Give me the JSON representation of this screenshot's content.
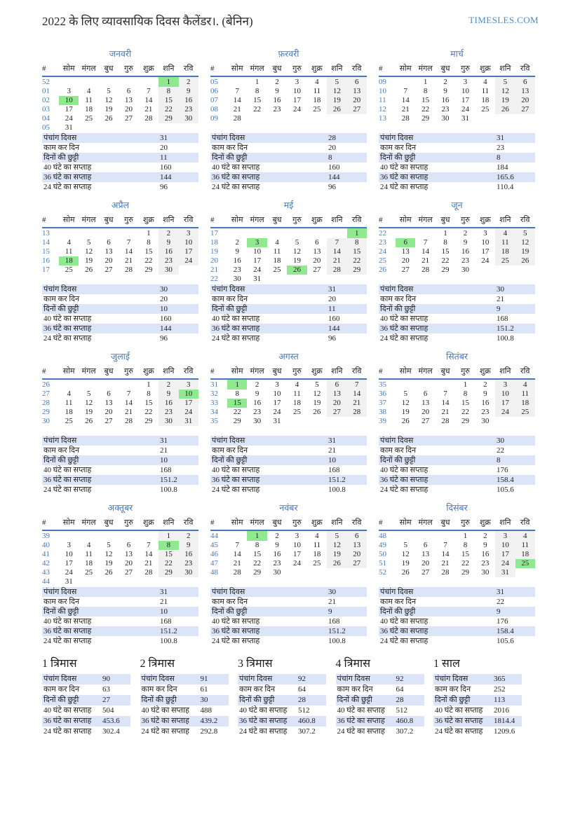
{
  "page": {
    "title": "2022 के लिए व्यावसायिक दिवस कैलेंडर।. (बेनिन)",
    "site": "TIMESLES.COM"
  },
  "colors": {
    "accent_blue": "#4678bc",
    "site_blue": "#4a8cc8",
    "holiday_green": "#90e890",
    "weekend_gray": "#f1f1f1",
    "stats_row_blue": "#dbe5f7"
  },
  "day_headers": [
    "#",
    "सोम",
    "मंगल",
    "बुध",
    "गुरु",
    "शुक्र",
    "शनि",
    "रवि"
  ],
  "stat_labels": [
    "पंचांग दिवस",
    "काम कर दिन",
    "दिनों की छुट्टी",
    "40 घंटे का सप्ताह",
    "36 घंटे का सप्ताह",
    "24 घंटे का सप्ताह"
  ],
  "months": [
    {
      "name": "जनवरी",
      "weeks": [
        {
          "n": "52",
          "d": [
            "",
            "",
            "",
            "",
            "",
            "1",
            "2"
          ]
        },
        {
          "n": "01",
          "d": [
            "3",
            "4",
            "5",
            "6",
            "7",
            "8",
            "9"
          ]
        },
        {
          "n": "02",
          "d": [
            "10",
            "11",
            "12",
            "13",
            "14",
            "15",
            "16"
          ]
        },
        {
          "n": "03",
          "d": [
            "17",
            "18",
            "19",
            "20",
            "21",
            "22",
            "23"
          ]
        },
        {
          "n": "04",
          "d": [
            "24",
            "25",
            "26",
            "27",
            "28",
            "29",
            "30"
          ]
        },
        {
          "n": "05",
          "d": [
            "31",
            "",
            "",
            "",
            "",
            "",
            ""
          ]
        }
      ],
      "holidays": [
        "1",
        "10"
      ],
      "stats": [
        "31",
        "20",
        "11",
        "160",
        "144",
        "96"
      ]
    },
    {
      "name": "फ़रवरी",
      "weeks": [
        {
          "n": "05",
          "d": [
            "",
            "1",
            "2",
            "3",
            "4",
            "5",
            "6"
          ]
        },
        {
          "n": "06",
          "d": [
            "7",
            "8",
            "9",
            "10",
            "11",
            "12",
            "13"
          ]
        },
        {
          "n": "07",
          "d": [
            "14",
            "15",
            "16",
            "17",
            "18",
            "19",
            "20"
          ]
        },
        {
          "n": "08",
          "d": [
            "21",
            "22",
            "23",
            "24",
            "25",
            "26",
            "27"
          ]
        },
        {
          "n": "09",
          "d": [
            "28",
            "",
            "",
            "",
            "",
            "",
            ""
          ]
        }
      ],
      "holidays": [],
      "stats": [
        "28",
        "20",
        "8",
        "160",
        "144",
        "96"
      ]
    },
    {
      "name": "मार्च",
      "weeks": [
        {
          "n": "09",
          "d": [
            "",
            "1",
            "2",
            "3",
            "4",
            "5",
            "6"
          ]
        },
        {
          "n": "10",
          "d": [
            "7",
            "8",
            "9",
            "10",
            "11",
            "12",
            "13"
          ]
        },
        {
          "n": "11",
          "d": [
            "14",
            "15",
            "16",
            "17",
            "18",
            "19",
            "20"
          ]
        },
        {
          "n": "12",
          "d": [
            "21",
            "22",
            "23",
            "24",
            "25",
            "26",
            "27"
          ]
        },
        {
          "n": "13",
          "d": [
            "28",
            "29",
            "30",
            "31",
            "",
            "",
            ""
          ]
        }
      ],
      "holidays": [],
      "stats": [
        "31",
        "23",
        "8",
        "184",
        "165.6",
        "110.4"
      ]
    },
    {
      "name": "अप्रैल",
      "weeks": [
        {
          "n": "13",
          "d": [
            "",
            "",
            "",
            "",
            "1",
            "2",
            "3"
          ]
        },
        {
          "n": "14",
          "d": [
            "4",
            "5",
            "6",
            "7",
            "8",
            "9",
            "10"
          ]
        },
        {
          "n": "15",
          "d": [
            "11",
            "12",
            "13",
            "14",
            "15",
            "16",
            "17"
          ]
        },
        {
          "n": "16",
          "d": [
            "18",
            "19",
            "20",
            "21",
            "22",
            "23",
            "24"
          ]
        },
        {
          "n": "17",
          "d": [
            "25",
            "26",
            "27",
            "28",
            "29",
            "30",
            ""
          ]
        }
      ],
      "holidays": [
        "18"
      ],
      "stats": [
        "30",
        "20",
        "10",
        "160",
        "144",
        "96"
      ]
    },
    {
      "name": "मई",
      "weeks": [
        {
          "n": "17",
          "d": [
            "",
            "",
            "",
            "",
            "",
            "",
            "1"
          ]
        },
        {
          "n": "18",
          "d": [
            "2",
            "3",
            "4",
            "5",
            "6",
            "7",
            "8"
          ]
        },
        {
          "n": "19",
          "d": [
            "9",
            "10",
            "11",
            "12",
            "13",
            "14",
            "15"
          ]
        },
        {
          "n": "20",
          "d": [
            "16",
            "17",
            "18",
            "19",
            "20",
            "21",
            "22"
          ]
        },
        {
          "n": "21",
          "d": [
            "23",
            "24",
            "25",
            "26",
            "27",
            "28",
            "29"
          ]
        },
        {
          "n": "22",
          "d": [
            "30",
            "31",
            "",
            "",
            "",
            "",
            ""
          ]
        }
      ],
      "holidays": [
        "1",
        "3",
        "26"
      ],
      "stats": [
        "31",
        "20",
        "11",
        "160",
        "144",
        "96"
      ]
    },
    {
      "name": "जून",
      "weeks": [
        {
          "n": "22",
          "d": [
            "",
            "",
            "1",
            "2",
            "3",
            "4",
            "5"
          ]
        },
        {
          "n": "23",
          "d": [
            "6",
            "7",
            "8",
            "9",
            "10",
            "11",
            "12"
          ]
        },
        {
          "n": "24",
          "d": [
            "13",
            "14",
            "15",
            "16",
            "17",
            "18",
            "19"
          ]
        },
        {
          "n": "25",
          "d": [
            "20",
            "21",
            "22",
            "23",
            "24",
            "25",
            "26"
          ]
        },
        {
          "n": "26",
          "d": [
            "27",
            "28",
            "29",
            "30",
            "",
            "",
            ""
          ]
        }
      ],
      "holidays": [
        "6"
      ],
      "stats": [
        "30",
        "21",
        "9",
        "168",
        "151.2",
        "100.8"
      ]
    },
    {
      "name": "जुलाई",
      "weeks": [
        {
          "n": "26",
          "d": [
            "",
            "",
            "",
            "",
            "1",
            "2",
            "3"
          ]
        },
        {
          "n": "27",
          "d": [
            "4",
            "5",
            "6",
            "7",
            "8",
            "9",
            "10"
          ]
        },
        {
          "n": "28",
          "d": [
            "11",
            "12",
            "13",
            "14",
            "15",
            "16",
            "17"
          ]
        },
        {
          "n": "29",
          "d": [
            "18",
            "19",
            "20",
            "21",
            "22",
            "23",
            "24"
          ]
        },
        {
          "n": "30",
          "d": [
            "25",
            "26",
            "27",
            "28",
            "29",
            "30",
            "31"
          ]
        }
      ],
      "holidays": [
        "10"
      ],
      "stats": [
        "31",
        "21",
        "10",
        "168",
        "151.2",
        "100.8"
      ]
    },
    {
      "name": "अगस्त",
      "weeks": [
        {
          "n": "31",
          "d": [
            "1",
            "2",
            "3",
            "4",
            "5",
            "6",
            "7"
          ]
        },
        {
          "n": "32",
          "d": [
            "8",
            "9",
            "10",
            "11",
            "12",
            "13",
            "14"
          ]
        },
        {
          "n": "33",
          "d": [
            "15",
            "16",
            "17",
            "18",
            "19",
            "20",
            "21"
          ]
        },
        {
          "n": "34",
          "d": [
            "22",
            "23",
            "24",
            "25",
            "26",
            "27",
            "28"
          ]
        },
        {
          "n": "35",
          "d": [
            "29",
            "30",
            "31",
            "",
            "",
            "",
            ""
          ]
        }
      ],
      "holidays": [
        "1",
        "15"
      ],
      "stats": [
        "31",
        "21",
        "10",
        "168",
        "151.2",
        "100.8"
      ]
    },
    {
      "name": "सितंबर",
      "weeks": [
        {
          "n": "35",
          "d": [
            "",
            "",
            "",
            "1",
            "2",
            "3",
            "4"
          ]
        },
        {
          "n": "36",
          "d": [
            "5",
            "6",
            "7",
            "8",
            "9",
            "10",
            "11"
          ]
        },
        {
          "n": "37",
          "d": [
            "12",
            "13",
            "14",
            "15",
            "16",
            "17",
            "18"
          ]
        },
        {
          "n": "38",
          "d": [
            "19",
            "20",
            "21",
            "22",
            "23",
            "24",
            "25"
          ]
        },
        {
          "n": "39",
          "d": [
            "26",
            "27",
            "28",
            "29",
            "30",
            "",
            ""
          ]
        }
      ],
      "holidays": [],
      "stats": [
        "30",
        "22",
        "8",
        "176",
        "158.4",
        "105.6"
      ]
    },
    {
      "name": "अक्तूबर",
      "weeks": [
        {
          "n": "39",
          "d": [
            "",
            "",
            "",
            "",
            "",
            "1",
            "2"
          ]
        },
        {
          "n": "40",
          "d": [
            "3",
            "4",
            "5",
            "6",
            "7",
            "8",
            "9"
          ]
        },
        {
          "n": "41",
          "d": [
            "10",
            "11",
            "12",
            "13",
            "14",
            "15",
            "16"
          ]
        },
        {
          "n": "42",
          "d": [
            "17",
            "18",
            "19",
            "20",
            "21",
            "22",
            "23"
          ]
        },
        {
          "n": "43",
          "d": [
            "24",
            "25",
            "26",
            "27",
            "28",
            "29",
            "30"
          ]
        },
        {
          "n": "44",
          "d": [
            "31",
            "",
            "",
            "",
            "",
            "",
            ""
          ]
        }
      ],
      "holidays": [
        "8"
      ],
      "stats": [
        "31",
        "21",
        "10",
        "168",
        "151.2",
        "100.8"
      ]
    },
    {
      "name": "नवंबर",
      "weeks": [
        {
          "n": "44",
          "d": [
            "",
            "1",
            "2",
            "3",
            "4",
            "5",
            "6"
          ]
        },
        {
          "n": "45",
          "d": [
            "7",
            "8",
            "9",
            "10",
            "11",
            "12",
            "13"
          ]
        },
        {
          "n": "46",
          "d": [
            "14",
            "15",
            "16",
            "17",
            "18",
            "19",
            "20"
          ]
        },
        {
          "n": "47",
          "d": [
            "21",
            "22",
            "23",
            "24",
            "25",
            "26",
            "27"
          ]
        },
        {
          "n": "48",
          "d": [
            "28",
            "29",
            "30",
            "",
            "",
            "",
            ""
          ]
        }
      ],
      "holidays": [
        "1"
      ],
      "stats": [
        "30",
        "21",
        "9",
        "168",
        "151.2",
        "100.8"
      ]
    },
    {
      "name": "दिसंबर",
      "weeks": [
        {
          "n": "48",
          "d": [
            "",
            "",
            "",
            "1",
            "2",
            "3",
            "4"
          ]
        },
        {
          "n": "49",
          "d": [
            "5",
            "6",
            "7",
            "8",
            "9",
            "10",
            "11"
          ]
        },
        {
          "n": "50",
          "d": [
            "12",
            "13",
            "14",
            "15",
            "16",
            "17",
            "18"
          ]
        },
        {
          "n": "51",
          "d": [
            "19",
            "20",
            "21",
            "22",
            "23",
            "24",
            "25"
          ]
        },
        {
          "n": "52",
          "d": [
            "26",
            "27",
            "28",
            "29",
            "30",
            "31",
            ""
          ]
        }
      ],
      "holidays": [
        "25"
      ],
      "stats": [
        "31",
        "22",
        "9",
        "176",
        "158.4",
        "105.6"
      ]
    }
  ],
  "summary": [
    {
      "title": "1 त्रिमास",
      "stats": [
        "90",
        "63",
        "27",
        "504",
        "453.6",
        "302.4"
      ]
    },
    {
      "title": "2 त्रिमास",
      "stats": [
        "91",
        "61",
        "30",
        "488",
        "439.2",
        "292.8"
      ]
    },
    {
      "title": "3 त्रिमास",
      "stats": [
        "92",
        "64",
        "28",
        "512",
        "460.8",
        "307.2"
      ]
    },
    {
      "title": "4 त्रिमास",
      "stats": [
        "92",
        "64",
        "28",
        "512",
        "460.8",
        "307.2"
      ]
    },
    {
      "title": "1 साल",
      "stats": [
        "365",
        "252",
        "113",
        "2016",
        "1814.4",
        "1209.6"
      ]
    }
  ]
}
